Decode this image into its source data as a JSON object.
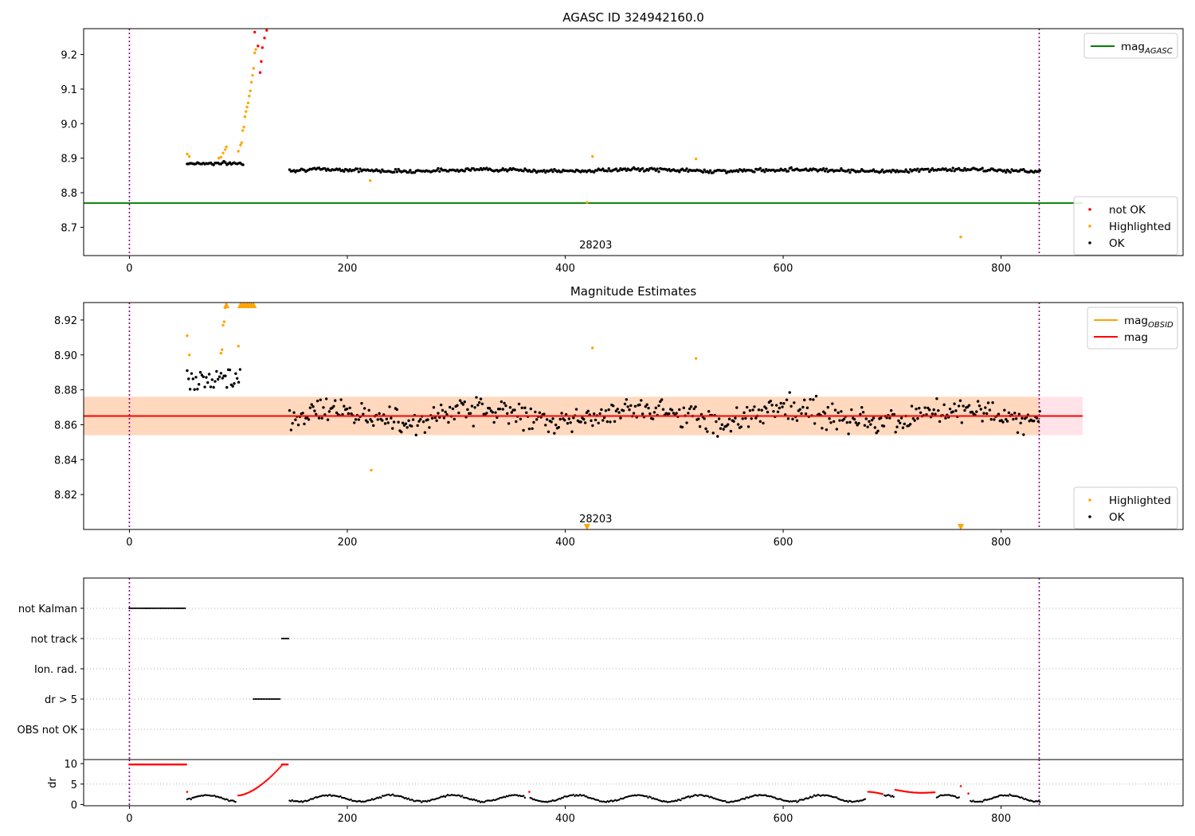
{
  "chart_data": [
    {
      "type": "scatter",
      "title": "AGASC ID 324942160.0",
      "xlim": [
        -42,
        967
      ],
      "ylim": [
        8.618,
        9.275
      ],
      "xticks": [
        0,
        200,
        400,
        600,
        800
      ],
      "yticks": [
        8.7,
        8.8,
        8.9,
        9.0,
        9.1,
        9.2
      ],
      "ytick_labels": [
        "8.7",
        "8.8",
        "8.9",
        "9.0",
        "9.1",
        "9.2"
      ],
      "vlines": [
        0,
        835
      ],
      "vline_color": "#800080",
      "reference_line": {
        "label": "mag",
        "subscript": "AGASC",
        "value": 8.77,
        "color": "#008000",
        "xmax": 875
      },
      "annotation": {
        "text": "28203",
        "x": 417
      },
      "legend_top": [
        {
          "label": "mag",
          "subscript": "AGASC",
          "color": "#008000",
          "kind": "line"
        }
      ],
      "legend_bottom": [
        {
          "label": "not OK",
          "color": "#ff0000",
          "kind": "dot"
        },
        {
          "label": "Highlighted",
          "color": "#ffa500",
          "kind": "dot"
        },
        {
          "label": "OK",
          "color": "#000000",
          "kind": "dot"
        }
      ],
      "series": [
        {
          "name": "not OK",
          "color": "#ff0000",
          "points": [
            [
              115,
              9.265
            ],
            [
              118,
              9.225
            ],
            [
              120,
              9.148
            ],
            [
              121,
              9.18
            ],
            [
              122,
              9.22
            ],
            [
              124,
              9.248
            ],
            [
              126,
              9.27
            ]
          ]
        },
        {
          "name": "Highlighted",
          "color": "#ffa500",
          "points": [
            [
              53,
              8.912
            ],
            [
              55,
              8.905
            ],
            [
              82,
              8.9
            ],
            [
              84,
              8.903
            ],
            [
              86,
              8.915
            ],
            [
              88,
              8.925
            ],
            [
              89,
              8.933
            ],
            [
              100,
              8.92
            ],
            [
              102,
              8.938
            ],
            [
              103,
              8.945
            ],
            [
              104,
              8.98
            ],
            [
              105,
              8.99
            ],
            [
              106,
              9.02
            ],
            [
              107,
              9.035
            ],
            [
              108,
              9.048
            ],
            [
              109,
              9.06
            ],
            [
              110,
              9.08
            ],
            [
              111,
              9.095
            ],
            [
              112,
              9.12
            ],
            [
              113,
              9.14
            ],
            [
              114,
              9.16
            ],
            [
              115,
              9.205
            ],
            [
              116,
              9.215
            ],
            [
              221,
              8.835
            ],
            [
              425,
              8.905
            ],
            [
              420,
              8.772
            ],
            [
              520,
              8.898
            ],
            [
              763,
              8.672
            ]
          ]
        },
        {
          "name": "OK",
          "color": "#000000",
          "generator": {
            "x_ranges": [
              [
                53,
                105
              ],
              [
                147,
                836
              ]
            ],
            "step": 1.35,
            "center": 8.865,
            "early_center": 8.885,
            "spread": 0.006
          }
        }
      ]
    },
    {
      "type": "scatter",
      "title": "Magnitude Estimates",
      "xlim": [
        -42,
        967
      ],
      "ylim": [
        8.8,
        8.93
      ],
      "xticks": [
        0,
        200,
        400,
        600,
        800
      ],
      "yticks": [
        8.82,
        8.84,
        8.86,
        8.88,
        8.9,
        8.92
      ],
      "ytick_labels": [
        "8.82",
        "8.84",
        "8.86",
        "8.88",
        "8.90",
        "8.92"
      ],
      "vlines": [
        0,
        835
      ],
      "vline_color": "#800080",
      "bands": [
        {
          "y0": 8.854,
          "y1": 8.876,
          "x0": -42,
          "x1": 875,
          "color": "#ffc0cb",
          "opacity": 0.45
        },
        {
          "y0": 8.854,
          "y1": 8.876,
          "x0": -42,
          "x1": 835,
          "color": "#ffa500",
          "opacity": 0.18
        }
      ],
      "lines": [
        {
          "label": "mag",
          "subscript": "OBSID",
          "value": 8.865,
          "color": "#ffa500",
          "x0": -42,
          "x1": 835
        },
        {
          "label": "mag",
          "value": 8.865,
          "color": "#ff0000",
          "x0": -42,
          "x1": 875
        }
      ],
      "annotation": {
        "text": "28203",
        "x": 417
      },
      "legend_top": [
        {
          "label": "mag",
          "subscript": "OBSID",
          "color": "#ffa500",
          "kind": "line"
        },
        {
          "label": "mag",
          "color": "#ff0000",
          "kind": "line"
        }
      ],
      "legend_bottom": [
        {
          "label": "Highlighted",
          "color": "#ffa500",
          "kind": "dot"
        },
        {
          "label": "OK",
          "color": "#000000",
          "kind": "dot"
        }
      ],
      "series": [
        {
          "name": "Highlighted",
          "color": "#ffa500",
          "points": [
            [
              53,
              8.911
            ],
            [
              55,
              8.9
            ],
            [
              84,
              8.901
            ],
            [
              85,
              8.903
            ],
            [
              86,
              8.917
            ],
            [
              87,
              8.919
            ],
            [
              88,
              8.927
            ],
            [
              100,
              8.905
            ],
            [
              222,
              8.834
            ],
            [
              425,
              8.904
            ],
            [
              520,
              8.898
            ]
          ]
        },
        {
          "name": "Highlighted clipped",
          "color": "#ffa500",
          "marker": "triangle-up",
          "points": [
            [
              89,
              8.928
            ],
            [
              102,
              8.928
            ],
            [
              104,
              8.928
            ],
            [
              106,
              8.928
            ],
            [
              108,
              8.928
            ],
            [
              110,
              8.928
            ],
            [
              112,
              8.928
            ],
            [
              114,
              8.928
            ]
          ]
        },
        {
          "name": "Highlighted off-scale",
          "color": "#ffa500",
          "marker": "triangle-down",
          "points": [
            [
              420,
              8.8015
            ],
            [
              763,
              8.8015
            ]
          ]
        },
        {
          "name": "OK",
          "color": "#000000",
          "generator": {
            "x_ranges": [
              [
                53,
                102
              ],
              [
                147,
                836
              ]
            ],
            "step": 1.35,
            "center": 8.865,
            "early_center": 8.886,
            "spread": 0.009
          }
        }
      ]
    },
    {
      "type": "scatter",
      "title": "",
      "xlim": [
        -42,
        967
      ],
      "yticks_categories": [
        "not Kalman",
        "not track",
        "Ion. rad.",
        "dr > 5",
        "OBS not OK"
      ],
      "vlines": [
        0,
        835
      ],
      "vline_color": "#800080",
      "segments": [
        {
          "category": "not Kalman",
          "x0": 0,
          "x1": 52
        },
        {
          "category": "not track",
          "x0": 140,
          "x1": 146
        },
        {
          "category": "dr > 5",
          "x0": 114,
          "x1": 139
        }
      ]
    },
    {
      "type": "scatter",
      "title": "",
      "xlim": [
        -42,
        967
      ],
      "ylim": [
        -0.3,
        11
      ],
      "xticks": [
        0,
        200,
        400,
        600,
        800
      ],
      "yticks": [
        0,
        5,
        10
      ],
      "ytick_labels": [
        "0",
        "5",
        "10"
      ],
      "ylabel": "dr",
      "vlines": [
        0,
        835
      ],
      "vline_color": "#800080",
      "red_segments": [
        {
          "x0": 0,
          "x1": 52,
          "y": 9.8
        },
        {
          "x0": 140,
          "x1": 146,
          "y": 9.8
        }
      ],
      "red_points": [
        [
          53,
          3.1
        ],
        [
          367,
          3.1
        ],
        [
          763,
          4.5
        ],
        [
          770,
          2.7
        ]
      ],
      "red_curves": [
        {
          "x0": 100,
          "x1": 140,
          "y0": 2.2,
          "y1": 9.6
        },
        {
          "x0": 678,
          "x1": 692,
          "y0": 3.1,
          "y1": 2.5
        },
        {
          "x0": 703,
          "x1": 740,
          "y0": 3.6,
          "y1": 3.0,
          "mid": 2.9
        }
      ],
      "black_segments": [
        [
          53,
          98
        ],
        [
          147,
          363
        ],
        [
          368,
          676
        ],
        [
          693,
          702
        ],
        [
          741,
          762
        ],
        [
          772,
          836
        ]
      ]
    }
  ]
}
